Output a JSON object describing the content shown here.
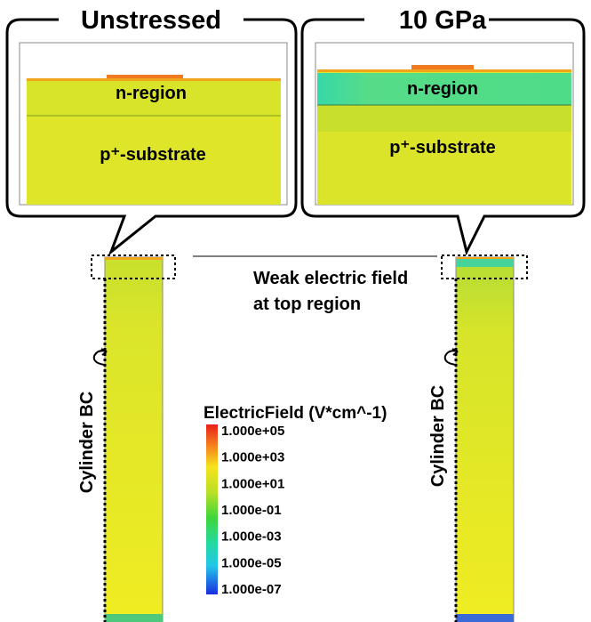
{
  "panels": [
    {
      "title": "Unstressed",
      "top_label": "n-region",
      "bottom_label": "p⁺-substrate",
      "side_label": "Cylinder BC"
    },
    {
      "title": "10 GPa",
      "top_label": "n-region",
      "bottom_label": "p⁺-substrate",
      "side_label": "Cylinder BC"
    }
  ],
  "annotation": {
    "lines": [
      "Weak electric field",
      "at top region"
    ]
  },
  "legend": {
    "title": "ElectricField (V*cm^-1)",
    "labels": [
      "1.000e+05",
      "1.000e+03",
      "1.000e+01",
      "1.000e-01",
      "1.000e-03",
      "1.000e-05",
      "1.000e-07"
    ]
  }
}
